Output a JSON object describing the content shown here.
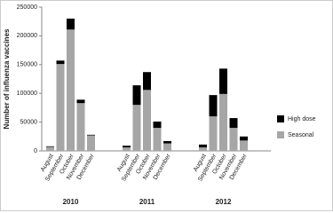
{
  "chart_data": {
    "type": "stacked-bar",
    "y_label": "Number of influenza vaccines",
    "categories": [
      "August",
      "September",
      "October",
      "November",
      "December",
      "August",
      "September",
      "October",
      "November",
      "December",
      "August",
      "September",
      "October",
      "November",
      "December"
    ],
    "groups": [
      "2010",
      "2011",
      "2012"
    ],
    "series": [
      {
        "name": "Seasonal",
        "color": "#a6a6a6",
        "values": [
          7000,
          151000,
          211000,
          83000,
          27000,
          6000,
          80000,
          106000,
          40000,
          13000,
          6000,
          60000,
          99000,
          40000,
          18000
        ]
      },
      {
        "name": "High dose",
        "color": "#000000",
        "values": [
          1000,
          6000,
          19000,
          6000,
          1000,
          3000,
          34000,
          31000,
          11000,
          4000,
          5000,
          37000,
          44000,
          17000,
          7000
        ]
      }
    ],
    "ylim": [
      0,
      250000
    ],
    "yticks": [
      0,
      50000,
      100000,
      150000,
      200000,
      250000
    ]
  }
}
